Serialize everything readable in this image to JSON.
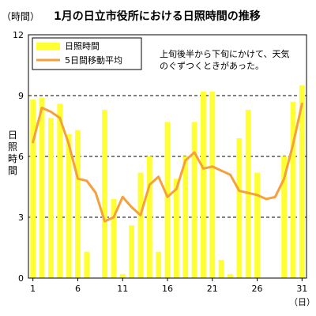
{
  "chart_data": {
    "type": "bar",
    "title": "1月の日立市役所における日照時間の推移",
    "y_unit": "（時間）",
    "ylabel": "日照時間",
    "x_unit": "（日）",
    "ylim": [
      0,
      12
    ],
    "y_ticks": [
      0,
      3,
      6,
      9,
      12
    ],
    "x_ticks": [
      1,
      6,
      11,
      16,
      21,
      26,
      31
    ],
    "grid": true,
    "legend_position": "top-left",
    "annotation": [
      "上旬後半から下旬にかけて、天気",
      "のぐずつくときがあった。"
    ],
    "x": [
      1,
      2,
      3,
      4,
      5,
      6,
      7,
      8,
      9,
      10,
      11,
      12,
      13,
      14,
      15,
      16,
      17,
      18,
      19,
      20,
      21,
      22,
      23,
      24,
      25,
      26,
      27,
      28,
      29,
      30,
      31
    ],
    "series": [
      {
        "name": "日照時間",
        "type": "bar",
        "color": "#ffff33",
        "values": [
          8.8,
          8.9,
          7.9,
          8.6,
          7.1,
          7.3,
          1.3,
          0,
          8.3,
          3.9,
          0.2,
          2.6,
          5.2,
          6.0,
          1.3,
          7.7,
          4.9,
          6.0,
          7.7,
          9.2,
          9.2,
          0.9,
          0.2,
          6.9,
          8.3,
          5.2,
          0,
          0,
          6.0,
          8.7,
          9.5
        ]
      },
      {
        "name": "5日間移動平均",
        "type": "line",
        "color": "#f5a03c",
        "values": [
          6.7,
          8.4,
          8.2,
          7.9,
          6.6,
          4.9,
          4.8,
          4.2,
          2.8,
          3.0,
          4.0,
          3.5,
          3.1,
          4.6,
          5.0,
          4.0,
          4.4,
          5.8,
          6.2,
          5.4,
          5.5,
          5.3,
          5.1,
          4.3,
          4.2,
          4.1,
          3.9,
          4.0,
          4.9,
          6.6,
          8.6
        ]
      }
    ]
  }
}
